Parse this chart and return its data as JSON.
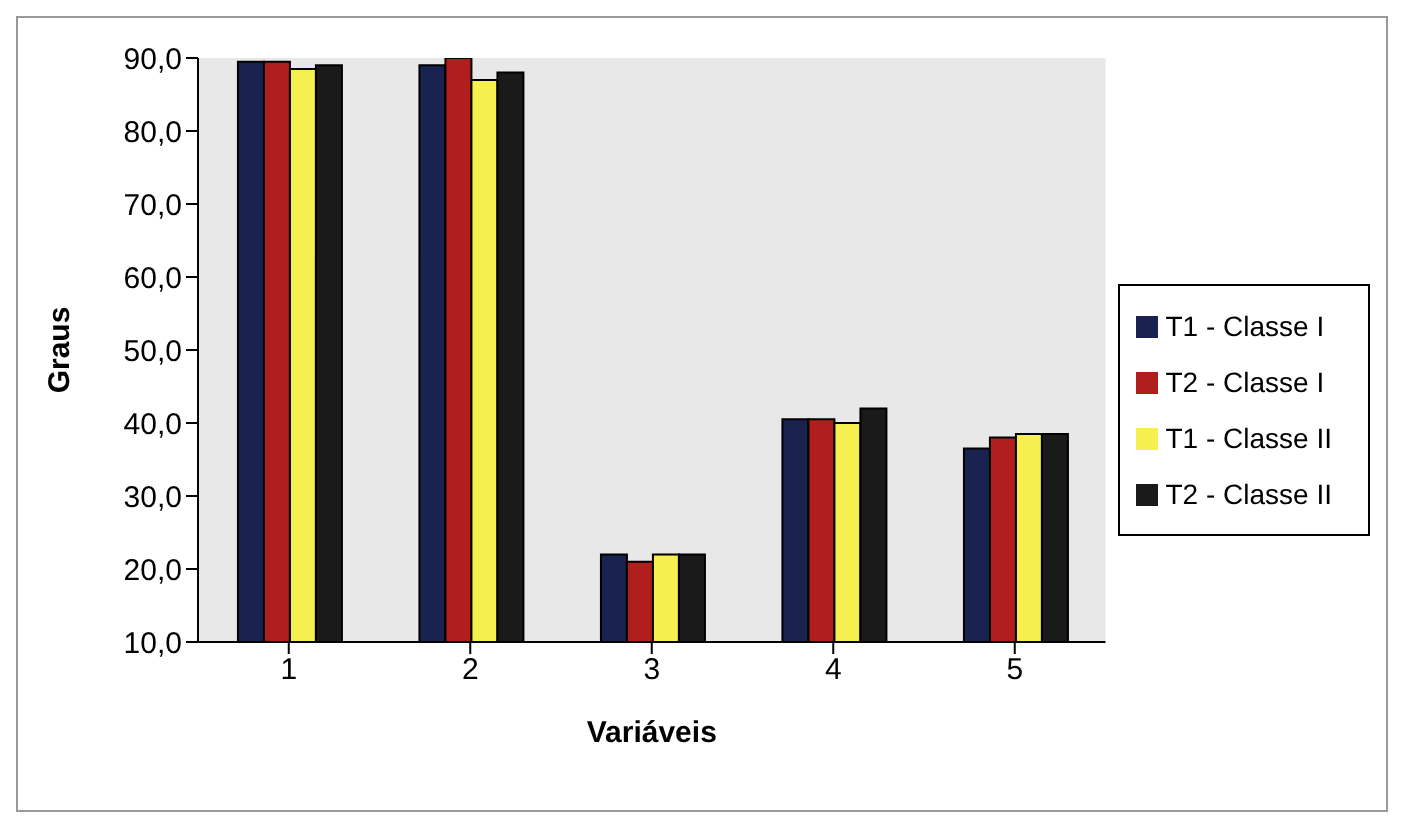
{
  "chart_data": {
    "type": "bar",
    "xlabel": "Variáveis",
    "ylabel": "Graus",
    "categories": [
      "1",
      "2",
      "3",
      "4",
      "5"
    ],
    "series": [
      {
        "name": "T1 - Classe I",
        "color": "#1a2250",
        "values": [
          89.5,
          89,
          22,
          40.5,
          36.5
        ]
      },
      {
        "name": "T2 - Classe I",
        "color": "#b01e1e",
        "values": [
          89.5,
          90,
          21,
          40.5,
          38
        ]
      },
      {
        "name": "T1 - Classe II",
        "color": "#f5f050",
        "values": [
          88.5,
          87,
          22,
          40,
          38.5
        ]
      },
      {
        "name": "T2 - Classe II",
        "color": "#1a1a1a",
        "values": [
          89,
          88,
          22,
          42,
          38.5
        ]
      }
    ],
    "ylim": [
      10,
      90
    ],
    "yticks": [
      {
        "value": 10,
        "label": "10,0"
      },
      {
        "value": 20,
        "label": "20,0"
      },
      {
        "value": 30,
        "label": "30,0"
      },
      {
        "value": 40,
        "label": "40,0"
      },
      {
        "value": 50,
        "label": "50,0"
      },
      {
        "value": 60,
        "label": "60,0"
      },
      {
        "value": 70,
        "label": "70,0"
      },
      {
        "value": 80,
        "label": "80,0"
      },
      {
        "value": 90,
        "label": "90,0"
      }
    ],
    "legend": "right"
  }
}
